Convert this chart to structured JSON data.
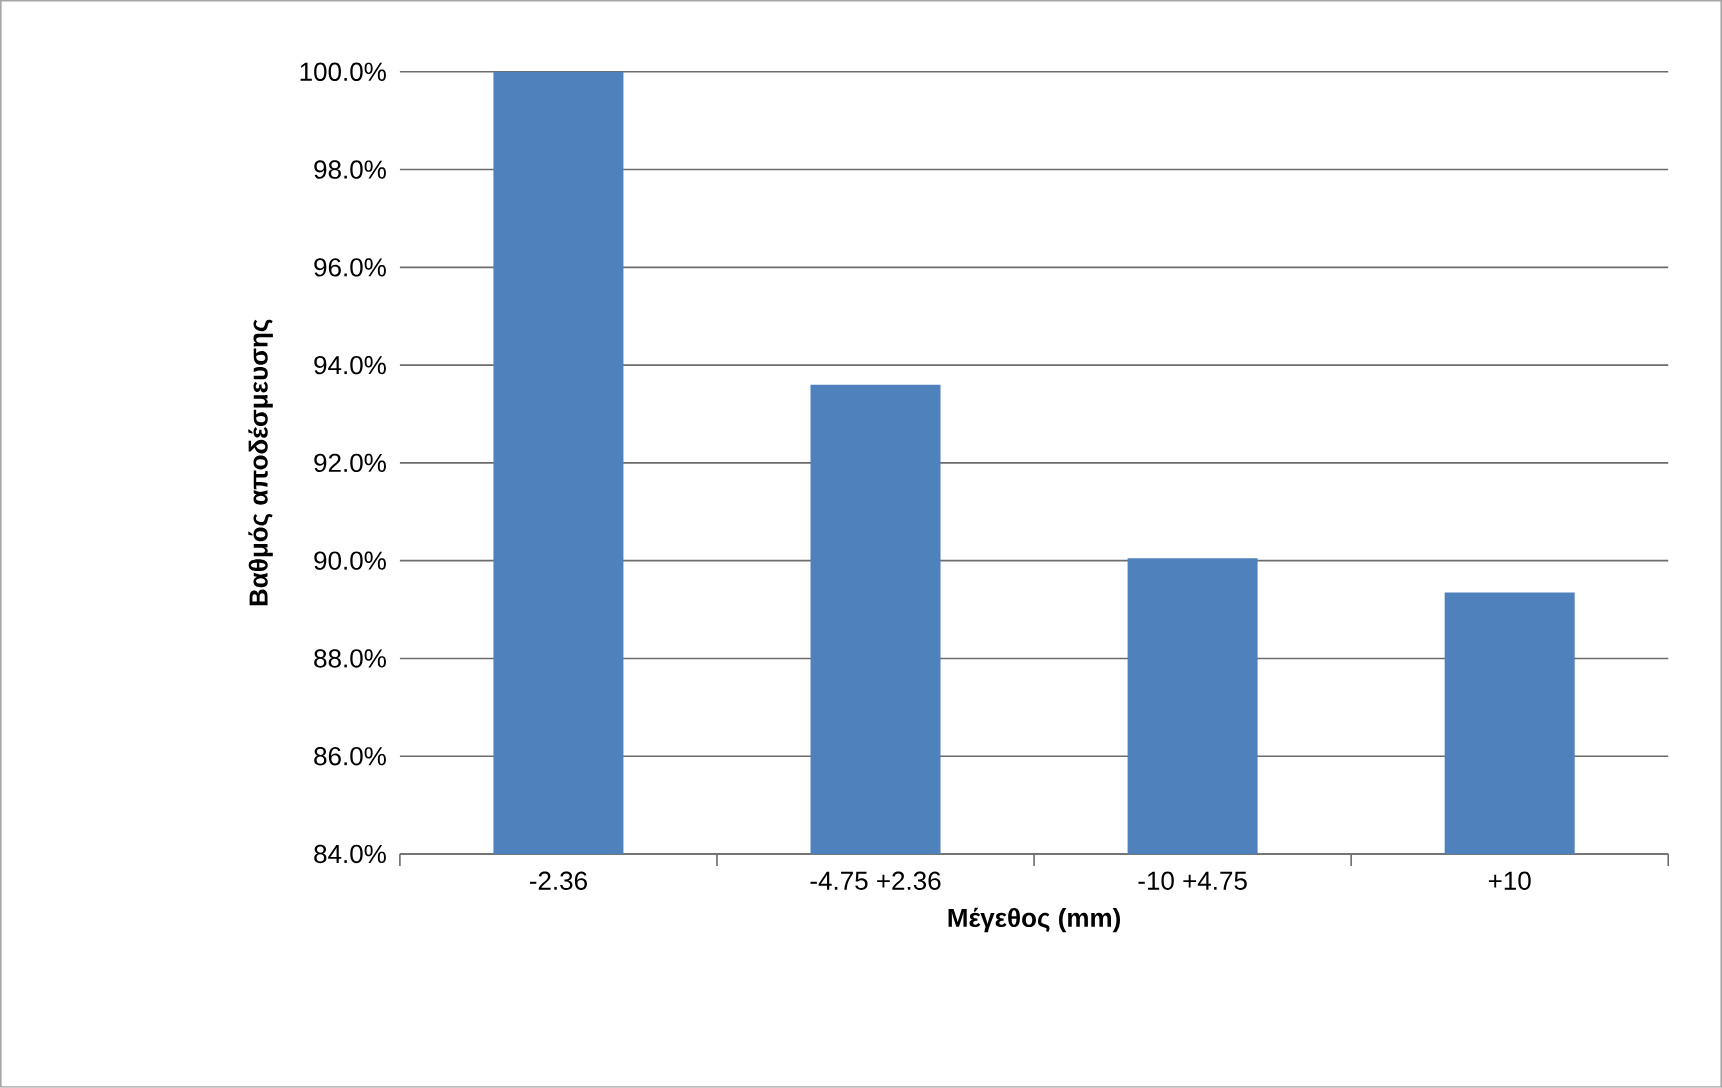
{
  "chart_data": {
    "type": "bar",
    "xlabel": "Μέγεθος (mm)",
    "ylabel": "Βαθμός αποδέσμευσης",
    "categories": [
      "-2.36",
      "-4.75 +2.36",
      "-10 +4.75",
      "+10"
    ],
    "values": [
      100.0,
      93.6,
      90.05,
      89.35
    ],
    "color": "#4f81bd",
    "ylim": [
      84,
      100
    ],
    "yticks": [
      {
        "value": 84,
        "label": "84.0%"
      },
      {
        "value": 86,
        "label": "86.0%"
      },
      {
        "value": 88,
        "label": "88.0%"
      },
      {
        "value": 90,
        "label": "90.0%"
      },
      {
        "value": 92,
        "label": "92.0%"
      },
      {
        "value": 94,
        "label": "94.0%"
      },
      {
        "value": 96,
        "label": "96.0%"
      },
      {
        "value": 98,
        "label": "98.0%"
      },
      {
        "value": 100,
        "label": "100.0%"
      }
    ],
    "grid": "y"
  }
}
